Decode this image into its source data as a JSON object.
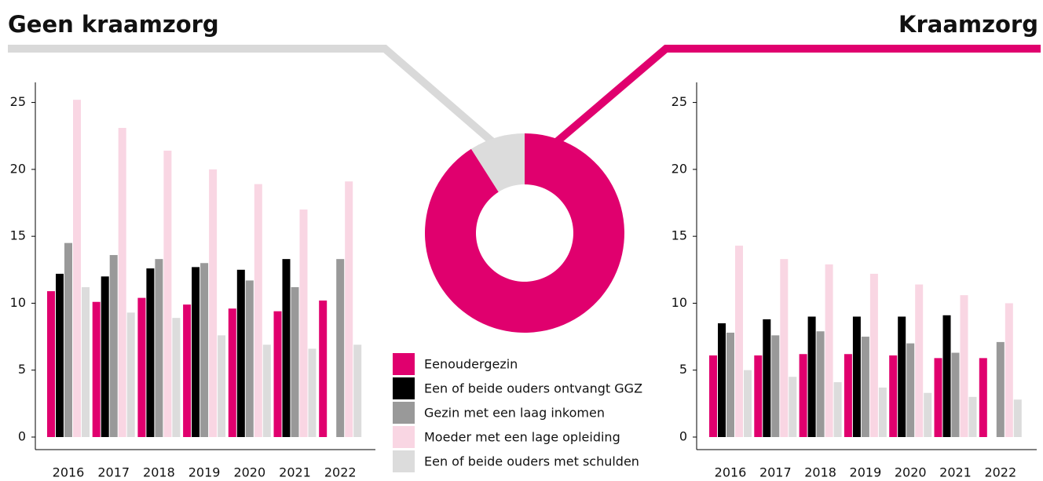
{
  "chart_data": [
    {
      "type": "bar",
      "title": "Geen kraamzorg",
      "categories": [
        "2016",
        "2017",
        "2018",
        "2019",
        "2020",
        "2021",
        "2022"
      ],
      "series": [
        {
          "name": "Eenoudergezin",
          "color": "#e0006e",
          "values": [
            10.9,
            10.1,
            10.4,
            9.9,
            9.6,
            9.4,
            10.2
          ]
        },
        {
          "name": "Een of beide ouders ontvangt GGZ",
          "color": "#000000",
          "values": [
            12.2,
            12.0,
            12.6,
            12.7,
            12.5,
            13.3,
            null
          ]
        },
        {
          "name": "Gezin met een laag inkomen",
          "color": "#999999",
          "values": [
            14.5,
            13.6,
            13.3,
            13.0,
            11.7,
            11.2,
            13.3
          ]
        },
        {
          "name": "Moeder met een lage opleiding",
          "color": "#f9d6e3",
          "values": [
            25.2,
            23.1,
            21.4,
            20.0,
            18.9,
            17.0,
            19.1
          ]
        },
        {
          "name": "Een of beide ouders met schulden",
          "color": "#dcdcdc",
          "values": [
            11.2,
            9.3,
            8.9,
            7.6,
            6.9,
            6.6,
            6.9
          ]
        }
      ],
      "ylim": [
        0,
        26.5
      ],
      "yticks": [
        0,
        5,
        10,
        15,
        20,
        25
      ]
    },
    {
      "type": "pie",
      "values": [
        91,
        9
      ],
      "colors": [
        "#e0006e",
        "#dcdcdc"
      ]
    },
    {
      "type": "bar",
      "title": "Kraamzorg",
      "categories": [
        "2016",
        "2017",
        "2018",
        "2019",
        "2020",
        "2021",
        "2022"
      ],
      "series": [
        {
          "color": "#e0006e",
          "values": [
            6.1,
            6.1,
            6.2,
            6.2,
            6.1,
            5.9,
            5.9
          ]
        },
        {
          "color": "#000000",
          "values": [
            8.5,
            8.8,
            9.0,
            9.0,
            9.0,
            9.1,
            null
          ]
        },
        {
          "color": "#999999",
          "values": [
            7.8,
            7.6,
            7.9,
            7.5,
            7.0,
            6.3,
            7.1
          ]
        },
        {
          "color": "#f9d6e3",
          "values": [
            14.3,
            13.3,
            12.9,
            12.2,
            11.4,
            10.6,
            10.0
          ]
        },
        {
          "color": "#dcdcdc",
          "values": [
            5.0,
            4.5,
            4.1,
            3.7,
            3.3,
            3.0,
            2.8
          ]
        }
      ],
      "ylim": [
        0,
        26.5
      ],
      "yticks": [
        0,
        5,
        10,
        15,
        20,
        25
      ]
    }
  ]
}
